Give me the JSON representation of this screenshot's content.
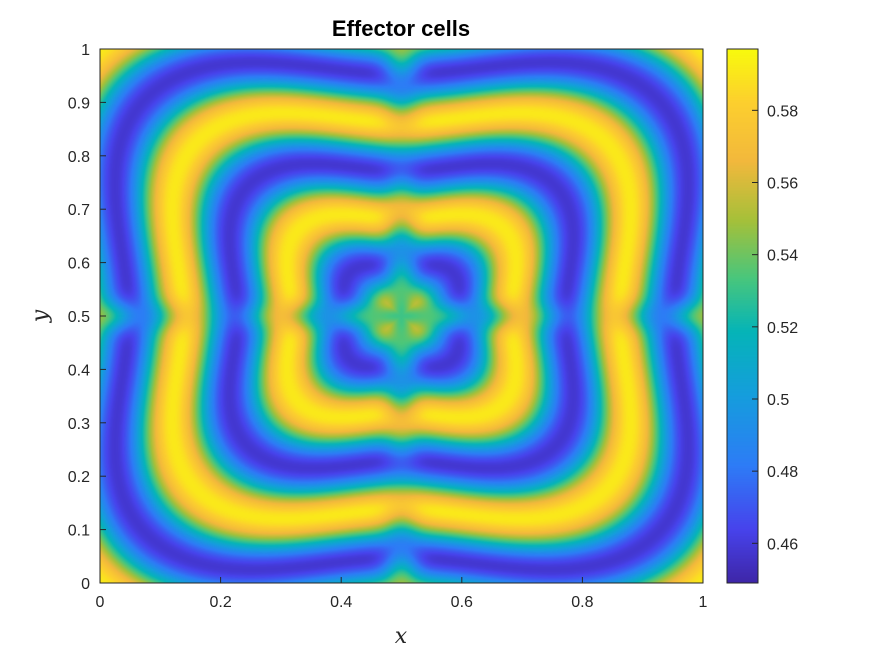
{
  "chart_data": {
    "type": "heatmap",
    "title": "Effector cells",
    "xlabel": "x",
    "ylabel": "y",
    "xlim": [
      0,
      1
    ],
    "ylim": [
      0,
      1
    ],
    "x_ticks": [
      "0",
      "0.2",
      "0.4",
      "0.6",
      "0.8",
      "1"
    ],
    "y_ticks": [
      "0",
      "0.1",
      "0.2",
      "0.3",
      "0.4",
      "0.5",
      "0.6",
      "0.7",
      "0.8",
      "0.9",
      "1"
    ],
    "colorbar": {
      "range": [
        0.449,
        0.597
      ],
      "ticks": [
        "0.46",
        "0.48",
        "0.5",
        "0.52",
        "0.54",
        "0.56",
        "0.58"
      ],
      "colormap": "parula"
    },
    "grid": false
  }
}
